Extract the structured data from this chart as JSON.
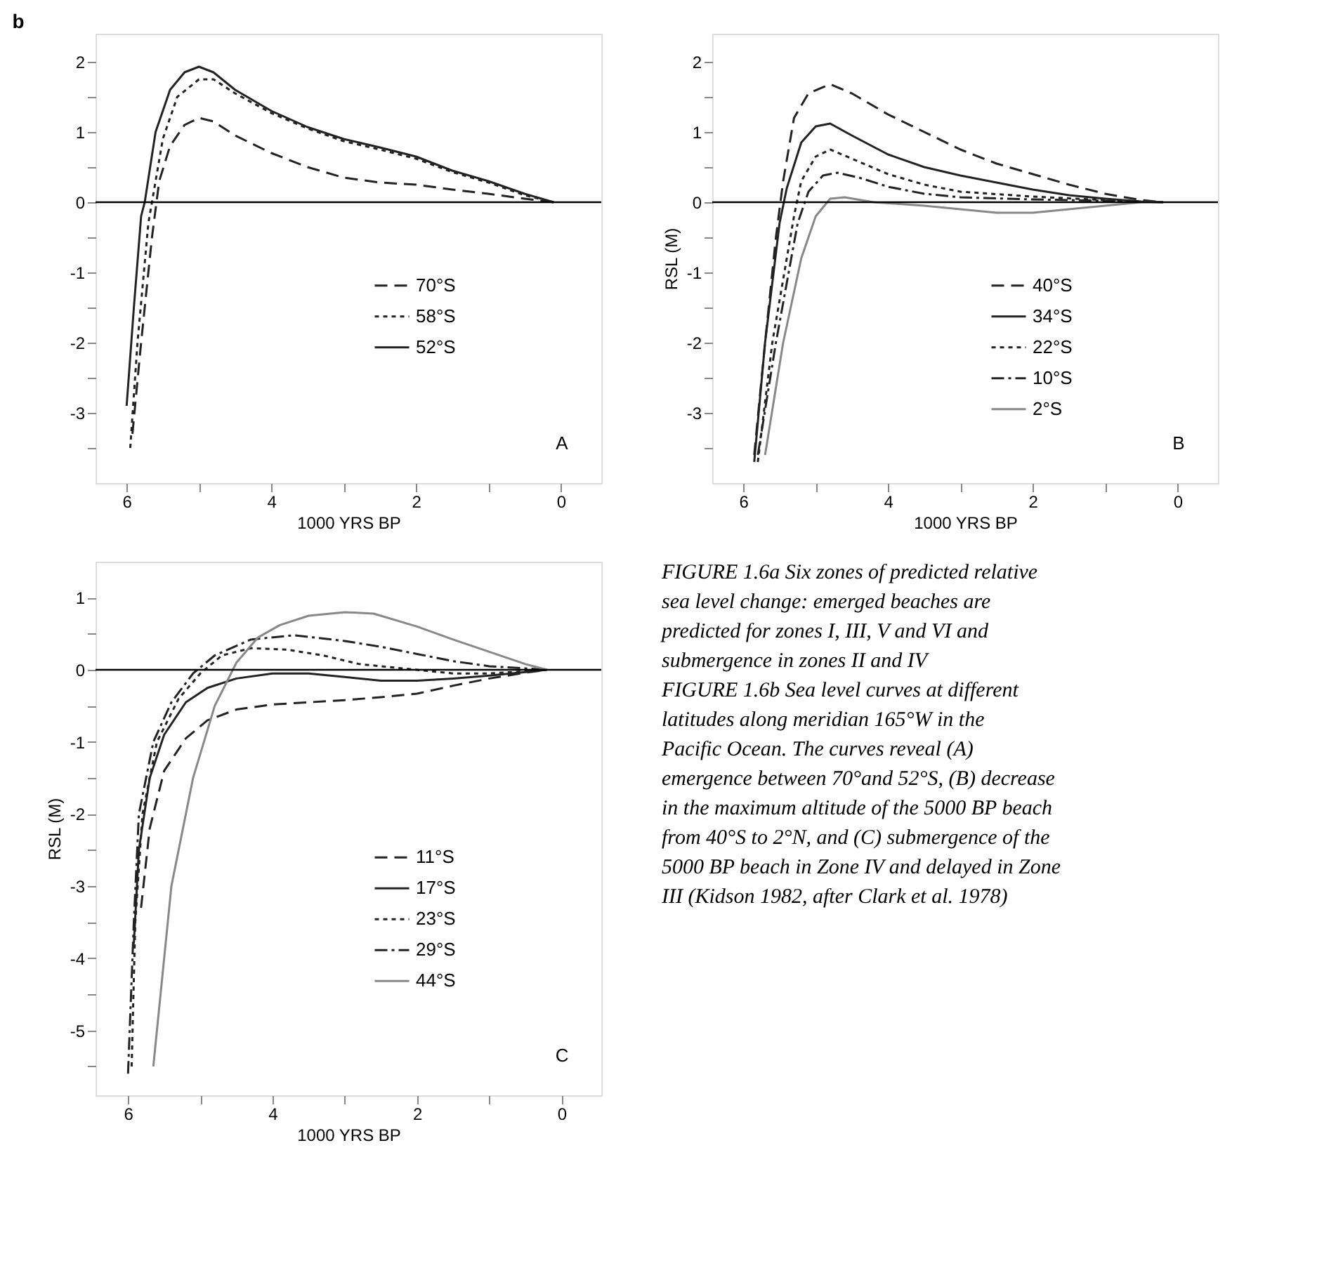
{
  "chart_data": [
    {
      "type": "line",
      "xlabel": "1000 YRS BP",
      "annotations": [
        "b",
        "A"
      ],
      "xlim": [
        6.43,
        -0.56
      ],
      "ylim": [
        -4,
        2.4
      ],
      "xticks": [
        6,
        {
          "value": 5,
          "label": null
        },
        4,
        {
          "value": 3,
          "label": null
        },
        2,
        {
          "value": 1,
          "label": null
        },
        0
      ],
      "yticks": [
        {
          "value": -3.5,
          "label": null
        },
        -3,
        {
          "value": -2.5,
          "label": null
        },
        -2,
        {
          "value": -1.5,
          "label": null
        },
        -1,
        {
          "value": -0.5,
          "label": null
        },
        0,
        {
          "value": 0.5,
          "label": null
        },
        1,
        {
          "value": 1.5,
          "label": null
        },
        2
      ],
      "legend": "bottom right",
      "grid": false,
      "ref_lines": [
        {
          "axis": "y",
          "value": 0,
          "label": null
        }
      ],
      "series": [
        {
          "name": "70°S",
          "color": "#222222",
          "line_style": "dashed",
          "x": [
            5.92,
            5.8,
            5.65,
            5.55,
            5.4,
            5.2,
            5.0,
            4.8,
            4.5,
            4.0,
            3.5,
            3.0,
            2.5,
            2.0,
            1.5,
            1.0,
            0.5,
            0.1
          ],
          "values": [
            -3.3,
            -2,
            -0.5,
            0.3,
            0.8,
            1.1,
            1.2,
            1.15,
            0.95,
            0.7,
            0.5,
            0.35,
            0.28,
            0.25,
            0.18,
            0.12,
            0.05,
            0
          ]
        },
        {
          "name": "58°S",
          "color": "#222222",
          "line_style": "dotted",
          "x": [
            5.95,
            5.85,
            5.7,
            5.65,
            5.5,
            5.3,
            5.0,
            4.8,
            4.5,
            4.0,
            3.5,
            3.0,
            2.5,
            2.0,
            1.5,
            1.0,
            0.5,
            0.1
          ],
          "values": [
            -3.5,
            -2,
            -0.3,
            0,
            0.9,
            1.5,
            1.75,
            1.75,
            1.55,
            1.27,
            1.05,
            0.87,
            0.75,
            0.62,
            0.43,
            0.28,
            0.1,
            0
          ]
        },
        {
          "name": "52°S",
          "color": "#222222",
          "line_style": "solid",
          "x": [
            6.0,
            5.9,
            5.8,
            5.75,
            5.6,
            5.4,
            5.2,
            5.0,
            4.8,
            4.5,
            4.0,
            3.5,
            3.0,
            2.5,
            2.0,
            1.5,
            1.0,
            0.5,
            0.1
          ],
          "values": [
            -2.9,
            -1.5,
            -0.2,
            0,
            1.0,
            1.6,
            1.85,
            1.93,
            1.85,
            1.6,
            1.3,
            1.07,
            0.9,
            0.78,
            0.65,
            0.45,
            0.3,
            0.12,
            0
          ]
        }
      ]
    },
    {
      "type": "line",
      "xlabel": "1000 YRS BP",
      "ylabel": "RSL (M)",
      "annotations": [
        "B"
      ],
      "xlim": [
        6.43,
        -0.56
      ],
      "ylim": [
        -4,
        2.4
      ],
      "xticks": [
        6,
        {
          "value": 5,
          "label": null
        },
        4,
        {
          "value": 3,
          "label": null
        },
        2,
        {
          "value": 1,
          "label": null
        },
        0
      ],
      "yticks": [
        {
          "value": -3.5,
          "label": null
        },
        -3,
        {
          "value": -2.5,
          "label": null
        },
        -2,
        {
          "value": -1.5,
          "label": null
        },
        -1,
        {
          "value": -0.5,
          "label": null
        },
        0,
        {
          "value": 0.5,
          "label": null
        },
        1,
        {
          "value": 1.5,
          "label": null
        },
        2
      ],
      "legend": "bottom right",
      "grid": false,
      "ref_lines": [
        {
          "axis": "y",
          "value": 0,
          "label": null
        }
      ],
      "series": [
        {
          "name": "40°S",
          "color": "#222222",
          "line_style": "dashed",
          "x": [
            5.85,
            5.7,
            5.55,
            5.45,
            5.3,
            5.1,
            4.8,
            4.5,
            4.0,
            3.5,
            3.0,
            2.5,
            2.0,
            1.5,
            1.0,
            0.5,
            0.2
          ],
          "values": [
            -3.6,
            -2,
            -0.5,
            0.3,
            1.2,
            1.55,
            1.68,
            1.55,
            1.25,
            1.0,
            0.75,
            0.55,
            0.4,
            0.25,
            0.12,
            0.03,
            0
          ]
        },
        {
          "name": "34°S",
          "color": "#222222",
          "line_style": "solid",
          "x": [
            5.85,
            5.7,
            5.5,
            5.4,
            5.2,
            5.0,
            4.8,
            4.5,
            4.0,
            3.5,
            3.0,
            2.5,
            2.0,
            1.5,
            1.0,
            0.5,
            0.2
          ],
          "values": [
            -3.7,
            -2,
            -0.3,
            0.2,
            0.85,
            1.08,
            1.12,
            0.95,
            0.68,
            0.5,
            0.38,
            0.28,
            0.18,
            0.1,
            0.05,
            0.01,
            0
          ]
        },
        {
          "name": "22°S",
          "color": "#222222",
          "line_style": "dotted",
          "x": [
            5.8,
            5.6,
            5.3,
            5.2,
            5.0,
            4.8,
            4.5,
            4.0,
            3.5,
            3.0,
            2.0,
            1.0,
            0.2
          ],
          "values": [
            -3.7,
            -2,
            -0.2,
            0.3,
            0.65,
            0.75,
            0.62,
            0.4,
            0.25,
            0.15,
            0.08,
            0.03,
            0
          ]
        },
        {
          "name": "10°S",
          "color": "#222222",
          "line_style": "dashdot",
          "x": [
            5.8,
            5.55,
            5.25,
            5.1,
            4.9,
            4.7,
            4.4,
            4.0,
            3.5,
            3.0,
            2.0,
            1.0,
            0.2
          ],
          "values": [
            -3.6,
            -2,
            -0.3,
            0.15,
            0.38,
            0.42,
            0.35,
            0.22,
            0.12,
            0.07,
            0.04,
            0.02,
            0
          ]
        },
        {
          "name": "2°S",
          "color": "#888888",
          "line_style": "solid",
          "x": [
            5.7,
            5.45,
            5.2,
            5.0,
            4.8,
            4.6,
            4.2,
            3.5,
            3.0,
            2.5,
            2.0,
            1.5,
            1.0,
            0.5,
            0.2
          ],
          "values": [
            -3.6,
            -2,
            -0.8,
            -0.2,
            0.05,
            0.07,
            0,
            -0.05,
            -0.1,
            -0.15,
            -0.15,
            -0.1,
            -0.05,
            0,
            0
          ]
        }
      ]
    },
    {
      "type": "line",
      "xlabel": "1000 YRS BP",
      "ylabel": "RSL (M)",
      "annotations": [
        "C"
      ],
      "xlim": [
        6.45,
        -0.55
      ],
      "ylim": [
        -5.9,
        1.5
      ],
      "xticks": [
        6,
        {
          "value": 5,
          "label": null
        },
        4,
        {
          "value": 3,
          "label": null
        },
        2,
        {
          "value": 1,
          "label": null
        },
        0
      ],
      "yticks": [
        {
          "value": -5.5,
          "label": null
        },
        -5,
        {
          "value": -4.5,
          "label": null
        },
        -4,
        {
          "value": -3.5,
          "label": null
        },
        -3,
        {
          "value": -2.5,
          "label": null
        },
        -2,
        {
          "value": -1.5,
          "label": null
        },
        -1,
        {
          "value": -0.5,
          "label": null
        },
        0,
        {
          "value": 0.5,
          "label": null
        },
        1
      ],
      "legend": "bottom right",
      "grid": false,
      "ref_lines": [
        {
          "axis": "y",
          "value": 0,
          "label": null
        }
      ],
      "series": [
        {
          "name": "11°S",
          "color": "#222222",
          "line_style": "dashed",
          "x": [
            5.82,
            5.7,
            5.5,
            5.2,
            4.9,
            4.5,
            4.0,
            3.5,
            3.0,
            2.5,
            2.0,
            1.5,
            1.0,
            0.5,
            0.2
          ],
          "values": [
            -3.3,
            -2.2,
            -1.4,
            -0.95,
            -0.7,
            -0.55,
            -0.48,
            -0.45,
            -0.42,
            -0.38,
            -0.33,
            -0.22,
            -0.12,
            -0.04,
            0
          ]
        },
        {
          "name": "17°S",
          "color": "#222222",
          "line_style": "solid",
          "x": [
            5.92,
            5.85,
            5.7,
            5.5,
            5.2,
            4.9,
            4.5,
            4.0,
            3.5,
            3.0,
            2.5,
            2.0,
            1.5,
            1.0,
            0.5,
            0.2
          ],
          "values": [
            -3.8,
            -2.5,
            -1.5,
            -0.9,
            -0.45,
            -0.25,
            -0.12,
            -0.05,
            -0.05,
            -0.1,
            -0.15,
            -0.15,
            -0.12,
            -0.08,
            -0.03,
            0
          ]
        },
        {
          "name": "23°S",
          "color": "#222222",
          "line_style": "dotted",
          "x": [
            5.95,
            5.9,
            5.8,
            5.6,
            5.3,
            5.0,
            4.7,
            4.3,
            3.8,
            3.3,
            2.8,
            2.0,
            1.5,
            1.0,
            0.5,
            0.2
          ],
          "values": [
            -5.5,
            -3.5,
            -2.0,
            -1.0,
            -0.4,
            -0.05,
            0.2,
            0.3,
            0.28,
            0.2,
            0.08,
            0,
            -0.05,
            -0.05,
            -0.02,
            0
          ]
        },
        {
          "name": "29°S",
          "color": "#222222",
          "line_style": "dashdot",
          "x": [
            6.0,
            5.92,
            5.85,
            5.65,
            5.4,
            5.1,
            4.8,
            4.3,
            3.7,
            3.0,
            2.5,
            2.0,
            1.5,
            1.0,
            0.5,
            0.2
          ],
          "values": [
            -5.6,
            -3.5,
            -2.0,
            -1.0,
            -0.45,
            -0.05,
            0.2,
            0.42,
            0.48,
            0.4,
            0.32,
            0.22,
            0.12,
            0.05,
            0.02,
            0
          ]
        },
        {
          "name": "44°S",
          "color": "#888888",
          "line_style": "solid",
          "x": [
            5.65,
            5.4,
            5.1,
            4.8,
            4.5,
            4.2,
            3.9,
            3.5,
            3.0,
            2.6,
            2.0,
            1.5,
            1.0,
            0.5,
            0.2
          ],
          "values": [
            -5.5,
            -3.0,
            -1.5,
            -0.5,
            0.1,
            0.45,
            0.62,
            0.75,
            0.8,
            0.78,
            0.6,
            0.42,
            0.25,
            0.08,
            0
          ]
        }
      ]
    },
    {
      "type": "other",
      "annotations": [
        "FIGURE 1.6a Six zones of predicted relative sea level change: emerged beaches are predicted for zones I, III, V and VI and submergence in zones II and IV",
        "FIGURE 1.6b Sea level curves at different latitudes along meridian 165°W in the Pacific Ocean. The curves reveal (A) emergence between 70°and 52°S, (B) decrease in the maximum altitude of the 5000 BP beach from 40°S to 2°N, and (C) submergence of the 5000 BP beach in Zone IV and delayed in Zone III (Kidson 1982, after Clark et al. 1978)"
      ]
    }
  ]
}
